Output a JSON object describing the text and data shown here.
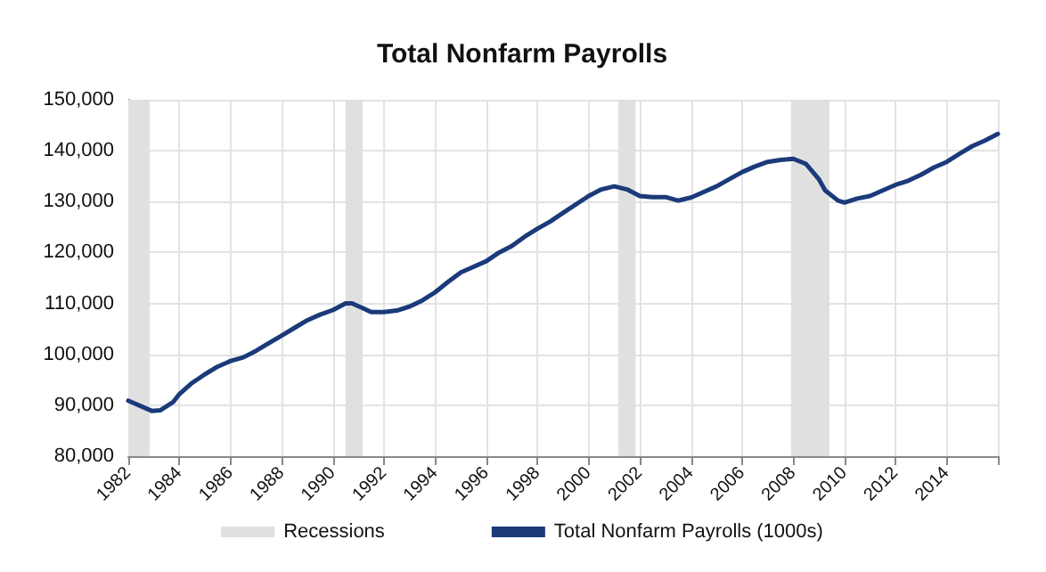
{
  "chart_data": {
    "type": "line",
    "title": "Total Nonfarm Payrolls",
    "x": [
      "1982-01",
      "1982-12",
      "1983-04",
      "1983-10",
      "1984-01",
      "1984-07",
      "1985-01",
      "1985-07",
      "1986-01",
      "1986-07",
      "1987-01",
      "1987-07",
      "1988-01",
      "1988-07",
      "1989-01",
      "1989-07",
      "1990-01",
      "1990-07",
      "1990-10",
      "1991-03",
      "1991-07",
      "1992-01",
      "1992-07",
      "1993-01",
      "1993-07",
      "1994-01",
      "1994-07",
      "1995-01",
      "1995-07",
      "1996-01",
      "1996-07",
      "1997-01",
      "1997-07",
      "1998-01",
      "1998-07",
      "1999-01",
      "2000-01",
      "2000-07",
      "2001-01",
      "2001-07",
      "2002-01",
      "2002-07",
      "2003-01",
      "2003-07",
      "2004-01",
      "2004-07",
      "2005-01",
      "2005-07",
      "2006-01",
      "2006-07",
      "2007-01",
      "2007-07",
      "2008-01",
      "2008-07",
      "2009-01",
      "2009-04",
      "2009-10",
      "2010-01",
      "2010-07",
      "2011-01",
      "2011-07",
      "2012-01",
      "2012-07",
      "2013-01",
      "2013-07",
      "2014-01",
      "2014-07",
      "2015-01",
      "2015-07",
      "2016-01"
    ],
    "series": [
      {
        "name": "Total Nonfarm Payrolls (1000s)",
        "color": "#1b3a7a",
        "values": [
          90900,
          88900,
          89000,
          90600,
          92200,
          94400,
          96100,
          97600,
          98700,
          99400,
          100700,
          102200,
          103700,
          105200,
          106700,
          107800,
          108700,
          110000,
          110000,
          109100,
          108300,
          108300,
          108600,
          109400,
          110600,
          112200,
          114200,
          116100,
          117200,
          118300,
          120000,
          121300,
          123100,
          124700,
          126100,
          127800,
          131100,
          132400,
          133000,
          132400,
          131100,
          130900,
          130900,
          130200,
          130800,
          131900,
          133000,
          134400,
          135800,
          136900,
          137800,
          138200,
          138400,
          137400,
          134400,
          132200,
          130200,
          129800,
          130600,
          131100,
          132200,
          133300,
          134100,
          135300,
          136700,
          137800,
          139400,
          140900,
          142000,
          143300
        ]
      }
    ],
    "xlim": [
      "1982-01",
      "2016-01"
    ],
    "xticks": [
      "1982",
      "1984",
      "1986",
      "1988",
      "1990",
      "1992",
      "1994",
      "1996",
      "1998",
      "2000",
      "2002",
      "2004",
      "2006",
      "2008",
      "2010",
      "2012",
      "2014",
      {
        "value": "2016",
        "label": null
      }
    ],
    "ylim": [
      80000,
      150000
    ],
    "yticks": [
      {
        "value": 80000,
        "label": "80,000"
      },
      {
        "value": 90000,
        "label": "90,000"
      },
      {
        "value": 100000,
        "label": "100,000"
      },
      {
        "value": 110000,
        "label": "110,000"
      },
      {
        "value": 120000,
        "label": "120,000"
      },
      {
        "value": 130000,
        "label": "130,000"
      },
      {
        "value": 140000,
        "label": "140,000"
      },
      {
        "value": 150000,
        "label": "150,000"
      }
    ],
    "bands": [
      {
        "axis": "x",
        "from": "1982-01",
        "to": "1982-11",
        "label": "Recessions",
        "color": "#e0e0e0"
      },
      {
        "axis": "x",
        "from": "1990-07",
        "to": "1991-03",
        "color": "#e0e0e0"
      },
      {
        "axis": "x",
        "from": "2001-03",
        "to": "2001-11",
        "color": "#e0e0e0"
      },
      {
        "axis": "x",
        "from": "2007-12",
        "to": "2009-06",
        "color": "#e0e0e0"
      }
    ],
    "grid": true,
    "legend": "bottom",
    "marker": "none",
    "line_style": "solid"
  }
}
